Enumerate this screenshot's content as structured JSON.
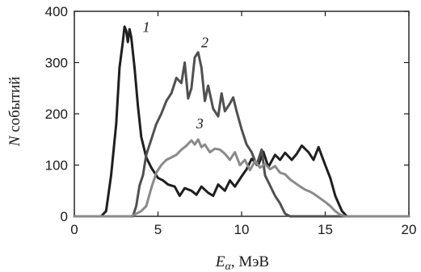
{
  "chart_data": {
    "type": "line",
    "title": "",
    "xlabel_main": "E",
    "xlabel_sub": "α",
    "xlabel_unit": ", МэВ",
    "ylabel_var": "N",
    "ylabel_text": " событий",
    "xlim": [
      0,
      20
    ],
    "ylim": [
      0,
      400
    ],
    "xticks": [
      0,
      5,
      10,
      15,
      20
    ],
    "yticks": [
      0,
      100,
      200,
      300,
      400
    ],
    "grid": false,
    "series": [
      {
        "name": "1",
        "color": "#1f1f1f",
        "label_at": [
          4.3,
          360
        ],
        "points": [
          [
            0,
            0
          ],
          [
            1.6,
            0
          ],
          [
            1.9,
            10
          ],
          [
            2.2,
            80
          ],
          [
            2.5,
            180
          ],
          [
            2.7,
            290
          ],
          [
            2.9,
            340
          ],
          [
            3.0,
            370
          ],
          [
            3.1,
            362
          ],
          [
            3.2,
            340
          ],
          [
            3.3,
            365
          ],
          [
            3.4,
            350
          ],
          [
            3.6,
            290
          ],
          [
            3.8,
            215
          ],
          [
            4.0,
            155
          ],
          [
            4.3,
            115
          ],
          [
            4.6,
            95
          ],
          [
            5.0,
            75
          ],
          [
            5.3,
            70
          ],
          [
            5.6,
            62
          ],
          [
            6.0,
            58
          ],
          [
            6.3,
            40
          ],
          [
            6.6,
            55
          ],
          [
            7.0,
            50
          ],
          [
            7.3,
            42
          ],
          [
            7.6,
            58
          ],
          [
            8.0,
            46
          ],
          [
            8.3,
            40
          ],
          [
            8.6,
            62
          ],
          [
            9.0,
            50
          ],
          [
            9.3,
            70
          ],
          [
            9.6,
            58
          ],
          [
            10.0,
            78
          ],
          [
            10.3,
            92
          ],
          [
            10.6,
            112
          ],
          [
            11.0,
            100
          ],
          [
            11.3,
            126
          ],
          [
            11.6,
            96
          ],
          [
            12.0,
            120
          ],
          [
            12.3,
            110
          ],
          [
            12.6,
            124
          ],
          [
            13.0,
            110
          ],
          [
            13.3,
            122
          ],
          [
            13.6,
            138
          ],
          [
            14.0,
            125
          ],
          [
            14.3,
            110
          ],
          [
            14.6,
            135
          ],
          [
            15.0,
            100
          ],
          [
            15.3,
            75
          ],
          [
            15.6,
            40
          ],
          [
            16.0,
            10
          ],
          [
            16.3,
            0
          ],
          [
            20,
            0
          ]
        ]
      },
      {
        "name": "2",
        "color": "#505050",
        "label_at": [
          7.8,
          330
        ],
        "points": [
          [
            0,
            0
          ],
          [
            3.5,
            0
          ],
          [
            3.7,
            20
          ],
          [
            3.9,
            60
          ],
          [
            4.1,
            80
          ],
          [
            4.3,
            120
          ],
          [
            4.6,
            150
          ],
          [
            4.9,
            180
          ],
          [
            5.2,
            200
          ],
          [
            5.5,
            225
          ],
          [
            5.8,
            240
          ],
          [
            6.1,
            270
          ],
          [
            6.4,
            260
          ],
          [
            6.6,
            300
          ],
          [
            6.8,
            230
          ],
          [
            7.0,
            250
          ],
          [
            7.2,
            310
          ],
          [
            7.4,
            320
          ],
          [
            7.6,
            290
          ],
          [
            7.8,
            225
          ],
          [
            8.0,
            255
          ],
          [
            8.3,
            210
          ],
          [
            8.6,
            195
          ],
          [
            8.8,
            240
          ],
          [
            9.0,
            205
          ],
          [
            9.3,
            220
          ],
          [
            9.5,
            232
          ],
          [
            9.7,
            205
          ],
          [
            10.0,
            170
          ],
          [
            10.3,
            140
          ],
          [
            10.6,
            125
          ],
          [
            10.9,
            100
          ],
          [
            11.2,
            130
          ],
          [
            11.4,
            80
          ],
          [
            11.7,
            60
          ],
          [
            12.0,
            40
          ],
          [
            12.3,
            25
          ],
          [
            12.6,
            5
          ],
          [
            12.9,
            0
          ],
          [
            20,
            0
          ]
        ]
      },
      {
        "name": "3",
        "color": "#8a8a8a",
        "label_at": [
          7.5,
          172
        ],
        "points": [
          [
            0,
            0
          ],
          [
            3.4,
            0
          ],
          [
            3.7,
            5
          ],
          [
            4.0,
            10
          ],
          [
            4.3,
            20
          ],
          [
            4.6,
            55
          ],
          [
            4.9,
            85
          ],
          [
            5.2,
            100
          ],
          [
            5.5,
            110
          ],
          [
            5.8,
            115
          ],
          [
            6.1,
            120
          ],
          [
            6.4,
            130
          ],
          [
            6.7,
            138
          ],
          [
            7.0,
            148
          ],
          [
            7.2,
            140
          ],
          [
            7.4,
            150
          ],
          [
            7.6,
            135
          ],
          [
            7.8,
            140
          ],
          [
            8.1,
            125
          ],
          [
            8.4,
            132
          ],
          [
            8.7,
            130
          ],
          [
            9.0,
            122
          ],
          [
            9.3,
            110
          ],
          [
            9.6,
            125
          ],
          [
            9.9,
            100
          ],
          [
            10.2,
            110
          ],
          [
            10.5,
            90
          ],
          [
            10.8,
            108
          ],
          [
            11.1,
            95
          ],
          [
            11.4,
            102
          ],
          [
            11.7,
            92
          ],
          [
            12.0,
            98
          ],
          [
            12.3,
            85
          ],
          [
            12.6,
            82
          ],
          [
            12.9,
            72
          ],
          [
            13.2,
            65
          ],
          [
            13.5,
            58
          ],
          [
            13.8,
            52
          ],
          [
            14.1,
            48
          ],
          [
            14.4,
            42
          ],
          [
            14.7,
            35
          ],
          [
            15.0,
            28
          ],
          [
            15.3,
            20
          ],
          [
            15.6,
            10
          ],
          [
            15.9,
            3
          ],
          [
            16.2,
            0
          ],
          [
            20,
            0
          ]
        ]
      }
    ]
  }
}
